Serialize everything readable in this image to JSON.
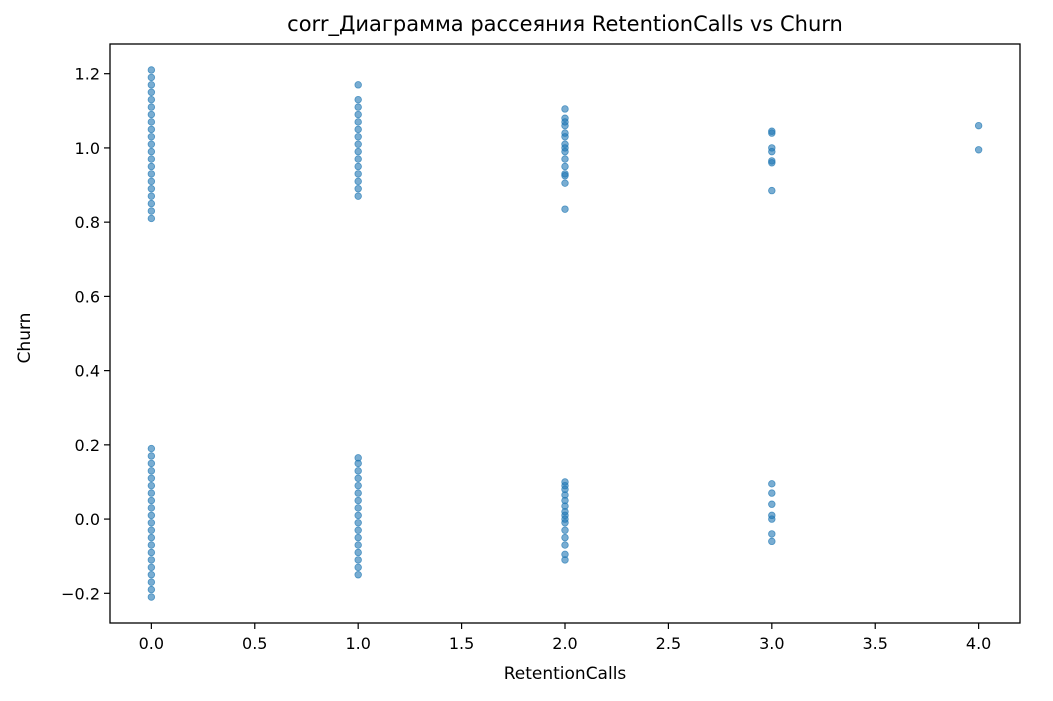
{
  "chart_data": {
    "type": "scatter",
    "title": "corr_Диаграмма рассеяния RetentionCalls vs Churn",
    "xlabel": "RetentionCalls",
    "ylabel": "Churn",
    "xlim": [
      -0.2,
      4.2
    ],
    "ylim": [
      -0.28,
      1.28
    ],
    "xticks": [
      0.0,
      0.5,
      1.0,
      1.5,
      2.0,
      2.5,
      3.0,
      3.5,
      4.0
    ],
    "xtick_labels": [
      "0.0",
      "0.5",
      "1.0",
      "1.5",
      "2.0",
      "2.5",
      "3.0",
      "3.5",
      "4.0"
    ],
    "yticks": [
      -0.2,
      0.0,
      0.2,
      0.4,
      0.6,
      0.8,
      1.0,
      1.2
    ],
    "ytick_labels": [
      "−0.2",
      "0.0",
      "0.2",
      "0.4",
      "0.6",
      "0.8",
      "1.0",
      "1.2"
    ],
    "grid": false,
    "point_color": "#1f77b4",
    "point_alpha": 0.6,
    "jitter_note": "Churn values are jittered around 0 and 1",
    "series": [
      {
        "points": [
          [
            0,
            0.81
          ],
          [
            0,
            0.83
          ],
          [
            0,
            0.85
          ],
          [
            0,
            0.87
          ],
          [
            0,
            0.89
          ],
          [
            0,
            0.91
          ],
          [
            0,
            0.93
          ],
          [
            0,
            0.95
          ],
          [
            0,
            0.97
          ],
          [
            0,
            0.99
          ],
          [
            0,
            1.01
          ],
          [
            0,
            1.03
          ],
          [
            0,
            1.05
          ],
          [
            0,
            1.07
          ],
          [
            0,
            1.09
          ],
          [
            0,
            1.11
          ],
          [
            0,
            1.13
          ],
          [
            0,
            1.15
          ],
          [
            0,
            1.17
          ],
          [
            0,
            1.19
          ],
          [
            0,
            1.21
          ],
          [
            0,
            -0.21
          ],
          [
            0,
            -0.19
          ],
          [
            0,
            -0.17
          ],
          [
            0,
            -0.15
          ],
          [
            0,
            -0.13
          ],
          [
            0,
            -0.11
          ],
          [
            0,
            -0.09
          ],
          [
            0,
            -0.07
          ],
          [
            0,
            -0.05
          ],
          [
            0,
            -0.03
          ],
          [
            0,
            -0.01
          ],
          [
            0,
            0.01
          ],
          [
            0,
            0.03
          ],
          [
            0,
            0.05
          ],
          [
            0,
            0.07
          ],
          [
            0,
            0.09
          ],
          [
            0,
            0.11
          ],
          [
            0,
            0.13
          ],
          [
            0,
            0.15
          ],
          [
            0,
            0.17
          ],
          [
            0,
            0.19
          ],
          [
            1,
            0.87
          ],
          [
            1,
            0.89
          ],
          [
            1,
            0.91
          ],
          [
            1,
            0.93
          ],
          [
            1,
            0.95
          ],
          [
            1,
            0.97
          ],
          [
            1,
            0.99
          ],
          [
            1,
            1.01
          ],
          [
            1,
            1.03
          ],
          [
            1,
            1.05
          ],
          [
            1,
            1.07
          ],
          [
            1,
            1.09
          ],
          [
            1,
            1.11
          ],
          [
            1,
            1.13
          ],
          [
            1,
            1.17
          ],
          [
            1,
            -0.15
          ],
          [
            1,
            -0.13
          ],
          [
            1,
            -0.11
          ],
          [
            1,
            -0.09
          ],
          [
            1,
            -0.07
          ],
          [
            1,
            -0.05
          ],
          [
            1,
            -0.03
          ],
          [
            1,
            -0.01
          ],
          [
            1,
            0.01
          ],
          [
            1,
            0.03
          ],
          [
            1,
            0.05
          ],
          [
            1,
            0.07
          ],
          [
            1,
            0.09
          ],
          [
            1,
            0.11
          ],
          [
            1,
            0.13
          ],
          [
            1,
            0.15
          ],
          [
            1,
            0.165
          ],
          [
            2,
            0.835
          ],
          [
            2,
            0.905
          ],
          [
            2,
            0.925
          ],
          [
            2,
            0.93
          ],
          [
            2,
            0.95
          ],
          [
            2,
            0.97
          ],
          [
            2,
            0.99
          ],
          [
            2,
            1.0
          ],
          [
            2,
            1.01
          ],
          [
            2,
            1.03
          ],
          [
            2,
            1.04
          ],
          [
            2,
            1.06
          ],
          [
            2,
            1.07
          ],
          [
            2,
            1.08
          ],
          [
            2,
            1.105
          ],
          [
            2,
            -0.11
          ],
          [
            2,
            -0.095
          ],
          [
            2,
            -0.07
          ],
          [
            2,
            -0.05
          ],
          [
            2,
            -0.03
          ],
          [
            2,
            -0.01
          ],
          [
            2,
            0.0
          ],
          [
            2,
            0.01
          ],
          [
            2,
            0.02
          ],
          [
            2,
            0.035
          ],
          [
            2,
            0.05
          ],
          [
            2,
            0.065
          ],
          [
            2,
            0.08
          ],
          [
            2,
            0.09
          ],
          [
            2,
            0.1
          ],
          [
            3,
            0.885
          ],
          [
            3,
            0.96
          ],
          [
            3,
            0.965
          ],
          [
            3,
            0.99
          ],
          [
            3,
            1.0
          ],
          [
            3,
            1.04
          ],
          [
            3,
            1.045
          ],
          [
            3,
            -0.06
          ],
          [
            3,
            -0.04
          ],
          [
            3,
            0.0
          ],
          [
            3,
            0.01
          ],
          [
            3,
            0.04
          ],
          [
            3,
            0.07
          ],
          [
            3,
            0.095
          ],
          [
            4,
            0.995
          ],
          [
            4,
            1.06
          ]
        ]
      }
    ]
  }
}
